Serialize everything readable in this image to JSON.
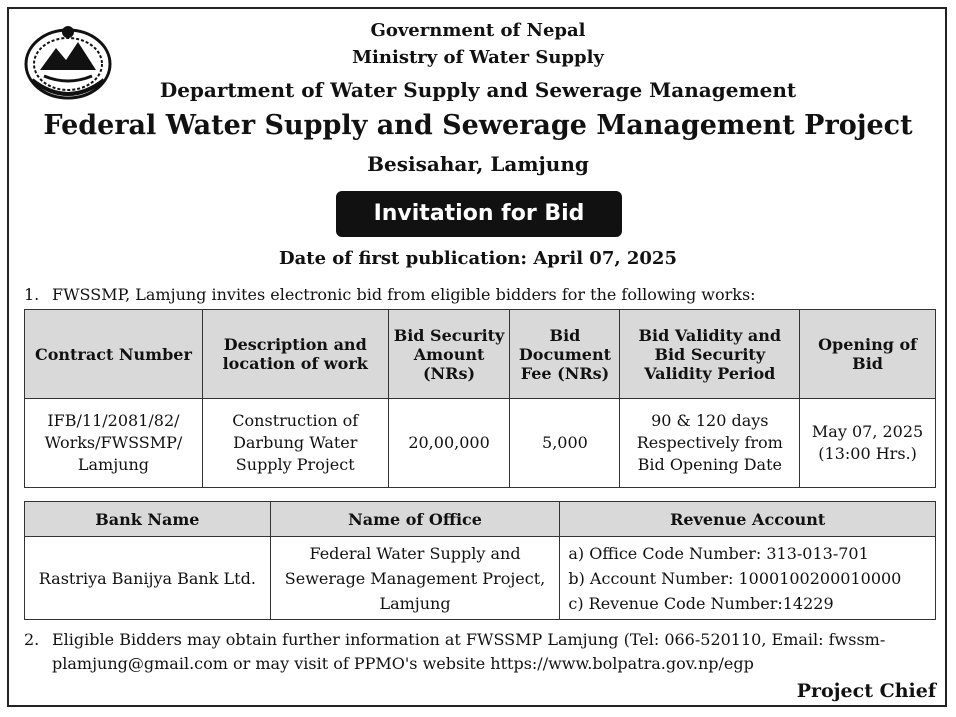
{
  "header": {
    "line1": "Government of Nepal",
    "line2": "Ministry of Water Supply",
    "line3": "Department of Water Supply and Sewerage Management",
    "line4": "Federal Water Supply and Sewerage Management Project",
    "line5": "Besisahar, Lamjung"
  },
  "banner": "Invitation for Bid",
  "publication_date": "Date of first publication: April 07, 2025",
  "para1": {
    "num": "1.",
    "text": "FWSSMP, Lamjung invites electronic bid from eligible bidders for the following works:"
  },
  "bid_table": {
    "headers": [
      [
        "Contract Number"
      ],
      [
        "Description and",
        "location of work"
      ],
      [
        "Bid Security",
        "Amount",
        "(NRs)"
      ],
      [
        "Bid",
        "Document",
        "Fee (NRs)"
      ],
      [
        "Bid Validity and",
        "Bid Security",
        "Validity Period"
      ],
      [
        "Opening of",
        "Bid"
      ]
    ],
    "row": [
      [
        "IFB/11/2081/82/",
        "Works/FWSSMP/",
        "Lamjung"
      ],
      [
        "Construction of",
        "Darbung Water",
        "Supply Project"
      ],
      [
        "20,00,000"
      ],
      [
        "5,000"
      ],
      [
        "90 & 120 days",
        "Respectively from",
        "Bid Opening Date"
      ],
      [
        "May 07, 2025",
        "(13:00 Hrs.)"
      ]
    ]
  },
  "bank_table": {
    "headers": [
      "Bank Name",
      "Name of Office",
      "Revenue Account"
    ],
    "bank": "Rastriya Banijya Bank Ltd.",
    "office": [
      "Federal Water Supply and",
      "Sewerage Management Project,",
      "Lamjung"
    ],
    "revenue": [
      "a) Office Code Number: 313-013-701",
      "b) Account Number: 1000100200010000",
      "c) Revenue Code Number:14229"
    ]
  },
  "para2": {
    "num": "2.",
    "line1": "Eligible Bidders may obtain further information at FWSSMP Lamjung (Tel: 066-520110, Email: fwssm-",
    "line2": "plamjung@gmail.com or may visit of PPMO's website https://www.bolpatra.gov.np/egp"
  },
  "signature": "Project Chief"
}
